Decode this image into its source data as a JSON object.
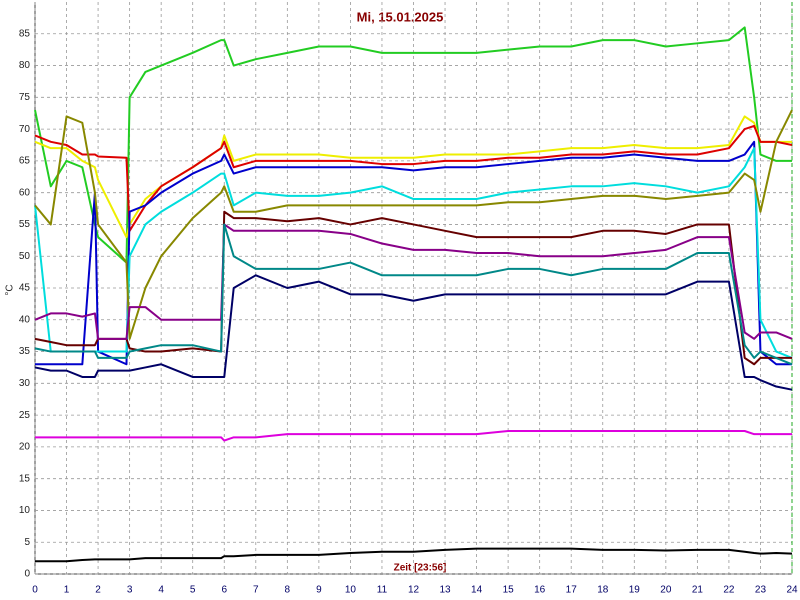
{
  "chart_data": {
    "type": "line",
    "title": "Mi, 15.01.2025",
    "x_label": "Zeit [23:56]",
    "y_label": "°C",
    "xlim": [
      0,
      24
    ],
    "xticks": [
      0,
      1,
      2,
      3,
      4,
      5,
      6,
      7,
      8,
      9,
      10,
      11,
      12,
      13,
      14,
      15,
      16,
      17,
      18,
      19,
      20,
      21,
      22,
      23,
      24
    ],
    "ylim": [
      0,
      90
    ],
    "yticks": [
      0,
      5,
      10,
      15,
      20,
      25,
      30,
      35,
      40,
      45,
      50,
      55,
      60,
      65,
      70,
      75,
      80,
      85
    ],
    "grid": true,
    "x": [
      0,
      0.5,
      1,
      1.5,
      1.9,
      2,
      2.9,
      3,
      3.5,
      4,
      5,
      5.9,
      6,
      6.3,
      7,
      8,
      9,
      10,
      11,
      12,
      13,
      14,
      15,
      16,
      17,
      18,
      19,
      20,
      21,
      22,
      22.5,
      22.8,
      23,
      23.5,
      24
    ],
    "series": [
      {
        "color": "#22cc22",
        "values": [
          73,
          61,
          65,
          64,
          55,
          53,
          49,
          75,
          79,
          80,
          82,
          84,
          84,
          80,
          81,
          82,
          83,
          83,
          82,
          82,
          82,
          82,
          82.5,
          83,
          83,
          84,
          84,
          83,
          83.5,
          84,
          86,
          75,
          66,
          65,
          65
        ]
      },
      {
        "color": "#eeee00",
        "values": [
          68,
          67,
          67,
          65,
          64,
          62,
          53,
          55,
          59,
          61,
          64,
          67,
          69,
          65,
          66,
          66,
          66,
          65.5,
          65.5,
          65.5,
          66,
          66,
          66,
          66.5,
          67,
          67,
          67.5,
          67,
          67,
          67.5,
          72,
          71,
          68,
          68,
          68
        ]
      },
      {
        "color": "#dd0000",
        "values": [
          69,
          68,
          67.5,
          66,
          66,
          65.7,
          65.5,
          54,
          58,
          61,
          64,
          67,
          68,
          64,
          65,
          65,
          65,
          65,
          64.5,
          64.5,
          65,
          65,
          65.5,
          65.5,
          66,
          66,
          66.5,
          66,
          66,
          67,
          70,
          70.5,
          68,
          68,
          67.5
        ]
      },
      {
        "color": "#0000cc",
        "values": [
          33,
          33,
          33,
          33,
          60,
          35,
          33,
          57,
          58,
          60,
          63,
          65,
          66,
          63,
          64,
          64,
          64,
          64,
          64,
          63.5,
          64,
          64,
          64.5,
          65,
          65.5,
          65.5,
          66,
          65.5,
          65,
          65,
          66,
          68,
          35,
          33,
          33
        ]
      },
      {
        "color": "#00dddd",
        "values": [
          58,
          35,
          35,
          35,
          35,
          35,
          35,
          50,
          55,
          57,
          60,
          63,
          63,
          58,
          60,
          59.5,
          59.5,
          60,
          61,
          59,
          59,
          59,
          60,
          60.5,
          61,
          61,
          61.5,
          61,
          60,
          61,
          64,
          67,
          40,
          35,
          34
        ]
      },
      {
        "color": "#888800",
        "values": [
          58,
          55,
          72,
          71,
          60,
          55,
          49,
          37,
          45,
          50,
          56,
          60,
          61,
          57,
          57,
          58,
          58,
          58,
          58,
          58,
          58,
          58,
          58.5,
          58.5,
          59,
          59.5,
          59.5,
          59,
          59.5,
          60,
          63,
          62,
          57,
          68,
          73
        ]
      },
      {
        "color": "#660000",
        "values": [
          37,
          36.5,
          36,
          36,
          36,
          37,
          37,
          35.5,
          35,
          35,
          35.5,
          35,
          57,
          56,
          56,
          55.5,
          56,
          55,
          56,
          55,
          54,
          53,
          53,
          53,
          53,
          54,
          54,
          53.5,
          55,
          55,
          34,
          33,
          34,
          34,
          34
        ]
      },
      {
        "color": "#880088",
        "values": [
          40,
          41,
          41,
          40.5,
          41,
          37,
          37,
          42,
          42,
          40,
          40,
          40,
          55,
          54,
          54,
          54,
          54,
          53.5,
          52,
          51,
          51,
          50.5,
          50.5,
          50,
          50,
          50,
          50.5,
          51,
          53,
          53,
          38,
          37,
          38,
          38,
          37
        ]
      },
      {
        "color": "#008888",
        "values": [
          35.5,
          35,
          35,
          35,
          35,
          34,
          34,
          35,
          35.5,
          36,
          36,
          35,
          55,
          50,
          48,
          48,
          48,
          49,
          47,
          47,
          47,
          47,
          48,
          48,
          47,
          48,
          48,
          48,
          50.5,
          50.5,
          36,
          34,
          35,
          34,
          33
        ]
      },
      {
        "color": "#000066",
        "values": [
          32.5,
          32,
          32,
          31,
          31,
          32,
          32,
          32,
          32.5,
          33,
          31,
          31,
          31,
          45,
          47,
          45,
          46,
          44,
          44,
          43,
          44,
          44,
          44,
          44,
          44,
          44,
          44,
          44,
          46,
          46,
          31,
          31,
          30.5,
          29.5,
          29
        ]
      },
      {
        "color": "#dd00dd",
        "values": [
          21.5,
          21.5,
          21.5,
          21.5,
          21.5,
          21.5,
          21.5,
          21.5,
          21.5,
          21.5,
          21.5,
          21.5,
          21,
          21.5,
          21.5,
          22,
          22,
          22,
          22,
          22,
          22,
          22,
          22.5,
          22.5,
          22.5,
          22.5,
          22.5,
          22.5,
          22.5,
          22.5,
          22.5,
          22,
          22,
          22,
          22
        ]
      },
      {
        "color": "#000000",
        "values": [
          2,
          2,
          2,
          2.2,
          2.3,
          2.3,
          2.3,
          2.3,
          2.5,
          2.5,
          2.5,
          2.5,
          2.8,
          2.8,
          3,
          3,
          3,
          3.3,
          3.5,
          3.5,
          3.8,
          4,
          4,
          4,
          4,
          3.8,
          3.8,
          3.7,
          3.8,
          3.8,
          3.5,
          3.3,
          3.2,
          3.3,
          3.2
        ]
      }
    ]
  }
}
